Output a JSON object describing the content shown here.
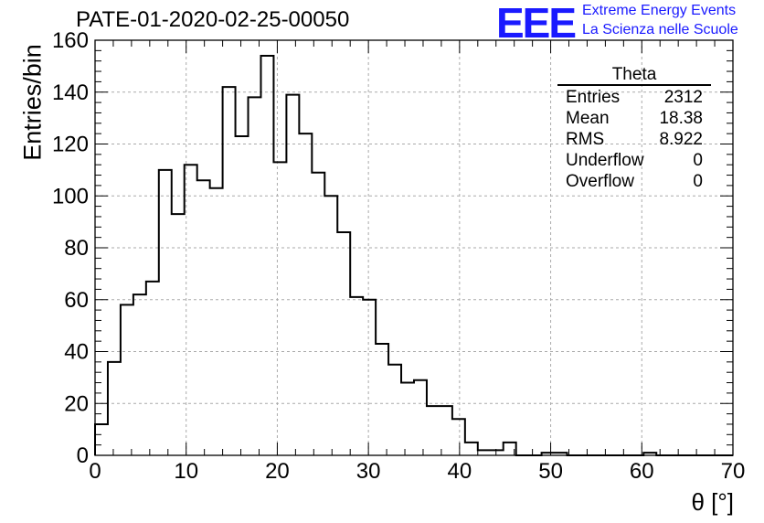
{
  "title": "PATE-01-2020-02-25-00050",
  "logo": {
    "mark": "EEE",
    "line1": "Extreme Energy Events",
    "line2": "La Scienza nelle Scuole",
    "color": "#1a1aff"
  },
  "stats_box": {
    "name": "Theta",
    "rows": [
      {
        "label": "Entries",
        "value": "2312"
      },
      {
        "label": "Mean",
        "value": "18.38"
      },
      {
        "label": "RMS",
        "value": "8.922"
      },
      {
        "label": "Underflow",
        "value": "0"
      },
      {
        "label": "Overflow",
        "value": "0"
      }
    ]
  },
  "chart_data": {
    "type": "histogram",
    "ylabel": "Entries/bin",
    "xlabel": "θ [°]",
    "xlim": [
      0,
      70
    ],
    "ylim": [
      0,
      160
    ],
    "bin_width": 1.4,
    "bin_edges_start": 0,
    "values": [
      12,
      36,
      58,
      62,
      67,
      110,
      93,
      112,
      106,
      103,
      142,
      123,
      138,
      154,
      113,
      139,
      124,
      109,
      100,
      86,
      61,
      60,
      43,
      35,
      28,
      29,
      19,
      19,
      14,
      5,
      2,
      2,
      5,
      0,
      0,
      1,
      1,
      0,
      0,
      0,
      0,
      0,
      0,
      1,
      0,
      0,
      0,
      0,
      0,
      0
    ],
    "xticks": [
      0,
      10,
      20,
      30,
      40,
      50,
      60,
      70
    ],
    "yticks": [
      0,
      20,
      40,
      60,
      80,
      100,
      120,
      140,
      160
    ],
    "grid": true,
    "line_color": "#000000",
    "grid_color": "#aaaaaa"
  }
}
